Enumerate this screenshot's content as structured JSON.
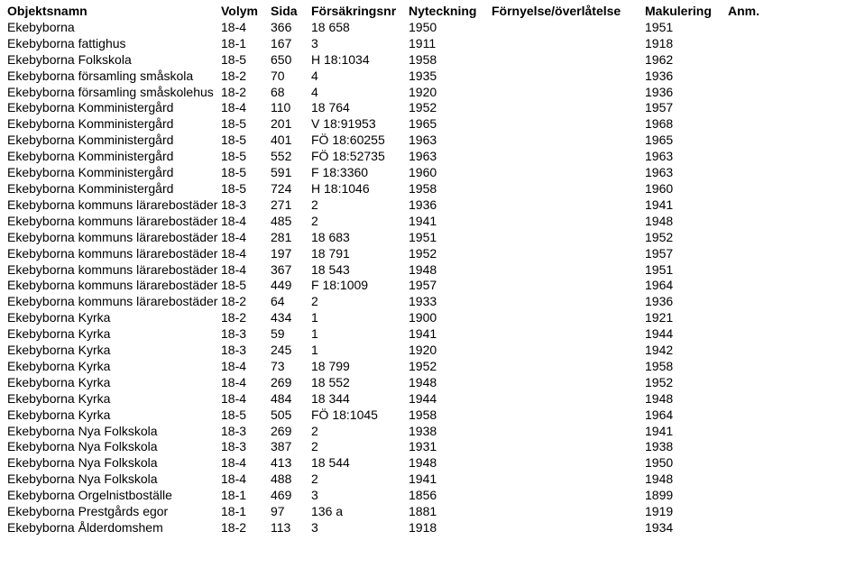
{
  "columns": [
    "Objektsnamn",
    "Volym",
    "Sida",
    "Försäkringsnr",
    "Nyteckning",
    "Förnyelse/överlåtelse",
    "Makulering",
    "Anm."
  ],
  "rows": [
    [
      "Ekebyborna",
      "18-4",
      "366",
      "18 658",
      "1950",
      "",
      "1951",
      ""
    ],
    [
      "Ekebyborna fattighus",
      "18-1",
      "167",
      "3",
      "1911",
      "",
      "1918",
      ""
    ],
    [
      "Ekebyborna Folkskola",
      "18-5",
      "650",
      "H 18:1034",
      "1958",
      "",
      "1962",
      ""
    ],
    [
      "Ekebyborna församling småskola",
      "18-2",
      "70",
      "4",
      "1935",
      "",
      "1936",
      ""
    ],
    [
      "Ekebyborna församling småskolehus",
      "18-2",
      "68",
      "4",
      "1920",
      "",
      "1936",
      ""
    ],
    [
      "Ekebyborna Komministergård",
      "18-4",
      "110",
      "18 764",
      "1952",
      "",
      "1957",
      ""
    ],
    [
      "Ekebyborna Komministergård",
      "18-5",
      "201",
      "V 18:91953",
      "1965",
      "",
      "1968",
      ""
    ],
    [
      "Ekebyborna Komministergård",
      "18-5",
      "401",
      "FÖ 18:60255",
      "1963",
      "",
      "1965",
      ""
    ],
    [
      "Ekebyborna Komministergård",
      "18-5",
      "552",
      "FÖ 18:52735",
      "1963",
      "",
      "1963",
      ""
    ],
    [
      "Ekebyborna Komministergård",
      "18-5",
      "591",
      "F 18:3360",
      "1960",
      "",
      "1963",
      ""
    ],
    [
      "Ekebyborna Komministergård",
      "18-5",
      "724",
      "H 18:1046",
      "1958",
      "",
      "1960",
      ""
    ],
    [
      "Ekebyborna kommuns lärarebostäder",
      "18-3",
      "271",
      "2",
      "1936",
      "",
      "1941",
      ""
    ],
    [
      "Ekebyborna kommuns lärarebostäder",
      "18-4",
      "485",
      "2",
      "1941",
      "",
      "1948",
      ""
    ],
    [
      "Ekebyborna kommuns lärarebostäder",
      "18-4",
      "281",
      "18 683",
      "1951",
      "",
      "1952",
      ""
    ],
    [
      "Ekebyborna kommuns lärarebostäder",
      "18-4",
      "197",
      "18 791",
      "1952",
      "",
      "1957",
      ""
    ],
    [
      "Ekebyborna kommuns lärarebostäder",
      "18-4",
      "367",
      "18 543",
      "1948",
      "",
      "1951",
      ""
    ],
    [
      "Ekebyborna kommuns lärarebostäder",
      "18-5",
      "449",
      "F 18:1009",
      "1957",
      "",
      "1964",
      ""
    ],
    [
      "Ekebyborna kommuns lärarebostäder",
      "18-2",
      "64",
      "2",
      "1933",
      "",
      "1936",
      ""
    ],
    [
      "Ekebyborna Kyrka",
      "18-2",
      "434",
      "1",
      "1900",
      "",
      "1921",
      ""
    ],
    [
      "Ekebyborna Kyrka",
      "18-3",
      "59",
      "1",
      "1941",
      "",
      "1944",
      ""
    ],
    [
      "Ekebyborna Kyrka",
      "18-3",
      "245",
      "1",
      "1920",
      "",
      "1942",
      ""
    ],
    [
      "Ekebyborna Kyrka",
      "18-4",
      "73",
      "18 799",
      "1952",
      "",
      "1958",
      ""
    ],
    [
      "Ekebyborna Kyrka",
      "18-4",
      "269",
      "18 552",
      "1948",
      "",
      "1952",
      ""
    ],
    [
      "Ekebyborna Kyrka",
      "18-4",
      "484",
      "18 344",
      "1944",
      "",
      "1948",
      ""
    ],
    [
      "Ekebyborna Kyrka",
      "18-5",
      "505",
      "FÖ 18:1045",
      "1958",
      "",
      "1964",
      ""
    ],
    [
      "Ekebyborna Nya Folkskola",
      "18-3",
      "269",
      "2",
      "1938",
      "",
      "1941",
      ""
    ],
    [
      "Ekebyborna Nya Folkskola",
      "18-3",
      "387",
      "2",
      "1931",
      "",
      "1938",
      ""
    ],
    [
      "Ekebyborna Nya Folkskola",
      "18-4",
      "413",
      "18 544",
      "1948",
      "",
      "1950",
      ""
    ],
    [
      "Ekebyborna Nya Folkskola",
      "18-4",
      "488",
      "2",
      "1941",
      "",
      "1948",
      ""
    ],
    [
      "Ekebyborna Orgelnistboställe",
      "18-1",
      "469",
      "3",
      "1856",
      "",
      "1899",
      ""
    ],
    [
      "Ekebyborna Prestgårds egor",
      "18-1",
      "97",
      "136 a",
      "1881",
      "",
      "1919",
      ""
    ],
    [
      "Ekebyborna Ålderdomshem",
      "18-2",
      "113",
      "3",
      "1918",
      "",
      "1934",
      ""
    ]
  ]
}
